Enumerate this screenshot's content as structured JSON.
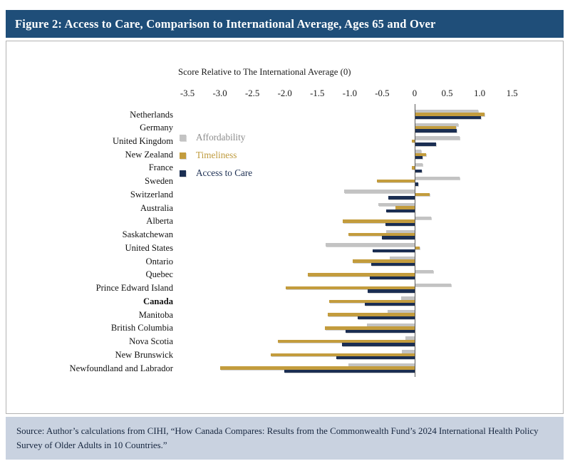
{
  "figure": {
    "title": "Figure 2: Access to Care, Comparison to International Average, Ages 65 and Over"
  },
  "source": {
    "text": "Source: Author’s calculations from CIHI, “How Canada Compares: Results from the Commonwealth Fund’s 2024 International Health Policy Survey of Older Adults in 10 Countries.”"
  },
  "colors": {
    "title_bar_bg": "#1f4e79",
    "title_text": "#ffffff",
    "panel_border": "#b3b3b3",
    "source_bar_bg": "#c9d2e0",
    "source_text": "#16263f",
    "axis_line": "#595959",
    "affordability": "#c3c3c3",
    "timeliness": "#c39c3d",
    "access_to_care": "#1b2e52",
    "affordability_text": "#8c8c8c"
  },
  "chart_data": {
    "type": "bar",
    "orientation": "horizontal",
    "axis_title": "Score Relative to The International Average (0)",
    "xlabel": "Score Relative to The International Average (0)",
    "ylabel": "",
    "xlim": [
      -3.5,
      1.5
    ],
    "grid": false,
    "legend_position": "inside-upper-left",
    "x_ticks": [
      -3.5,
      -3.0,
      -2.5,
      -2.0,
      -1.5,
      -1.0,
      -0.5,
      0,
      0.5,
      1.0,
      1.5
    ],
    "x_tick_labels": [
      "-3.5",
      "-3.0",
      "-2.5",
      "-2.0",
      "-1.5",
      "-1.0",
      "-0.5",
      "0",
      "0.5",
      "1.0",
      "1.5"
    ],
    "categories": [
      "Netherlands",
      "Germany",
      "United Kingdom",
      "New Zealand",
      "France",
      "Sweden",
      "Switzerland",
      "Australia",
      "Alberta",
      "Saskatchewan",
      "United States",
      "Ontario",
      "Quebec",
      "Prince Edward Island",
      "Canada",
      "Manitoba",
      "British Columbia",
      "Nova Scotia",
      "New Brunswick",
      "Newfoundland and Labrador"
    ],
    "bold_category": "Canada",
    "series": [
      {
        "name": "Affordability",
        "color": "#c3c3c3",
        "label_color": "#8c8c8c",
        "values": [
          0.98,
          0.67,
          0.69,
          0.1,
          0.12,
          0.69,
          -1.09,
          -0.56,
          0.25,
          -0.44,
          -1.37,
          -0.38,
          0.28,
          0.56,
          -0.21,
          -0.42,
          -0.74,
          -0.14,
          -0.2,
          -1.02
        ]
      },
      {
        "name": "Timeliness",
        "color": "#c39c3d",
        "label_color": "#bf9b3e",
        "values": [
          1.07,
          0.64,
          -0.04,
          0.18,
          -0.04,
          -0.58,
          0.23,
          -0.3,
          -1.11,
          -1.02,
          0.08,
          -0.96,
          -1.65,
          -1.99,
          -1.32,
          -1.34,
          -1.38,
          -2.11,
          -2.22,
          -3.0
        ]
      },
      {
        "name": "Access to Care",
        "color": "#1b2e52",
        "label_color": "#1b2e52",
        "values": [
          1.02,
          0.65,
          0.33,
          0.12,
          0.11,
          0.05,
          -0.41,
          -0.44,
          -0.45,
          -0.5,
          -0.65,
          -0.67,
          -0.69,
          -0.72,
          -0.77,
          -0.88,
          -1.06,
          -1.12,
          -1.21,
          -2.01
        ]
      }
    ]
  }
}
